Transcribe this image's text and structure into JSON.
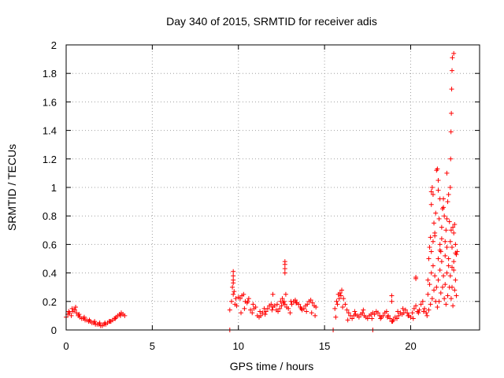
{
  "chart_data": {
    "type": "scatter",
    "title": "Day 340 of 2015, SRMTID for receiver adis",
    "xlabel": "GPS time / hours",
    "ylabel": "SRMTID / TECUs",
    "xlim": [
      0,
      24
    ],
    "ylim": [
      0,
      2
    ],
    "xticks": [
      0,
      5,
      10,
      15,
      20
    ],
    "yticks": [
      0,
      0.2,
      0.4,
      0.6,
      0.8,
      1,
      1.2,
      1.4,
      1.6,
      1.8,
      2
    ],
    "ytick_labels": [
      "0",
      "0.2",
      "0.4",
      "0.6",
      "0.8",
      "1",
      "1.2",
      "1.4",
      "1.6",
      "1.8",
      "2"
    ],
    "xtick_labels": [
      "0",
      "5",
      "10",
      "15",
      "20"
    ],
    "grid": true,
    "marker": "+",
    "color": "#ff0000",
    "series": [
      {
        "name": "adis",
        "x": [
          0.0,
          0.1,
          0.2,
          0.3,
          0.4,
          0.5,
          0.6,
          0.7,
          0.8,
          0.9,
          1.0,
          1.1,
          1.2,
          1.3,
          1.4,
          1.5,
          1.6,
          1.7,
          1.8,
          1.9,
          2.0,
          2.1,
          2.2,
          2.3,
          2.4,
          2.5,
          2.6,
          2.7,
          2.8,
          2.9,
          3.0,
          3.1,
          3.2,
          3.3,
          3.4,
          0.15,
          0.35,
          0.55,
          0.75,
          1.05,
          1.35,
          1.65,
          1.95,
          2.25,
          2.55,
          2.85,
          3.15,
          9.5,
          15.5,
          17.8,
          9.5,
          9.6,
          9.7,
          9.8,
          9.9,
          10.0,
          10.1,
          10.2,
          10.3,
          10.4,
          10.5,
          10.6,
          10.7,
          10.8,
          10.9,
          11.0,
          11.1,
          11.2,
          11.3,
          11.4,
          11.5,
          11.6,
          11.7,
          11.8,
          11.9,
          12.0,
          12.1,
          12.2,
          12.3,
          12.4,
          12.5,
          12.6,
          12.7,
          12.8,
          12.9,
          13.0,
          13.1,
          13.2,
          13.3,
          13.4,
          13.5,
          13.6,
          13.7,
          13.8,
          13.9,
          14.0,
          14.1,
          14.2,
          14.3,
          14.4,
          14.5,
          9.65,
          9.75,
          9.85,
          10.15,
          10.35,
          10.55,
          10.85,
          11.25,
          11.55,
          11.95,
          12.25,
          12.45,
          12.55,
          12.65,
          12.75,
          13.05,
          13.35,
          13.65,
          13.95,
          14.25,
          14.45,
          12.7,
          12.7,
          12.7,
          12.7,
          9.7,
          9.7,
          9.7,
          9.7,
          12.0,
          15.6,
          15.7,
          15.8,
          15.9,
          16.0,
          16.1,
          16.2,
          16.3,
          16.4,
          16.5,
          16.6,
          16.7,
          16.8,
          16.9,
          17.0,
          17.1,
          17.2,
          17.3,
          17.4,
          17.5,
          17.6,
          17.7,
          17.8,
          17.9,
          18.0,
          18.1,
          18.2,
          18.3,
          18.4,
          18.5,
          18.6,
          18.7,
          18.8,
          18.9,
          19.0,
          19.1,
          19.2,
          19.3,
          19.4,
          19.5,
          19.6,
          19.7,
          19.8,
          19.9,
          20.0,
          20.1,
          20.2,
          20.3,
          20.4,
          20.5,
          20.6,
          20.7,
          20.8,
          20.9,
          15.65,
          15.75,
          15.85,
          15.95,
          16.05,
          16.35,
          16.75,
          17.25,
          17.75,
          18.25,
          18.65,
          18.95,
          19.25,
          19.55,
          19.85,
          20.15,
          20.45,
          20.75,
          18.9,
          18.9,
          20.3,
          20.3,
          20.95,
          21.0,
          21.05,
          21.1,
          21.15,
          21.2,
          21.25,
          21.3,
          21.35,
          21.4,
          21.45,
          21.5,
          21.55,
          21.6,
          21.65,
          21.7,
          21.75,
          21.8,
          21.85,
          21.9,
          21.95,
          22.0,
          22.05,
          22.1,
          22.15,
          22.2,
          22.25,
          22.3,
          22.35,
          22.4,
          22.45,
          22.5,
          22.55,
          22.6,
          22.65,
          22.7,
          21.0,
          21.1,
          21.2,
          21.3,
          21.4,
          21.5,
          21.6,
          21.7,
          21.8,
          21.9,
          22.0,
          22.1,
          22.2,
          22.3,
          22.4,
          22.5,
          22.6,
          21.05,
          21.15,
          21.25,
          21.35,
          21.45,
          21.55,
          21.65,
          21.75,
          21.85,
          21.95,
          22.05,
          22.15,
          22.25,
          22.35,
          22.45,
          22.55,
          22.65,
          21.2,
          21.3,
          21.4,
          21.6,
          21.7,
          21.8,
          22.0,
          22.1,
          22.2,
          22.4,
          22.5,
          22.6,
          21.2,
          21.6,
          21.7,
          22.3,
          22.32,
          22.34,
          22.36,
          22.38,
          22.4,
          22.42,
          22.5,
          22.1,
          21.9
        ],
        "y": [
          0.09,
          0.11,
          0.12,
          0.1,
          0.13,
          0.14,
          0.12,
          0.1,
          0.09,
          0.08,
          0.08,
          0.07,
          0.07,
          0.06,
          0.06,
          0.05,
          0.05,
          0.04,
          0.04,
          0.04,
          0.03,
          0.03,
          0.04,
          0.04,
          0.05,
          0.06,
          0.06,
          0.07,
          0.08,
          0.09,
          0.1,
          0.11,
          0.12,
          0.11,
          0.1,
          0.13,
          0.15,
          0.16,
          0.11,
          0.09,
          0.07,
          0.06,
          0.05,
          0.05,
          0.06,
          0.08,
          0.1,
          0.0,
          0.0,
          0.0,
          0.14,
          0.2,
          0.25,
          0.18,
          0.17,
          0.23,
          0.22,
          0.24,
          0.25,
          0.2,
          0.19,
          0.22,
          0.14,
          0.12,
          0.15,
          0.16,
          0.1,
          0.09,
          0.1,
          0.12,
          0.15,
          0.13,
          0.15,
          0.17,
          0.18,
          0.16,
          0.17,
          0.14,
          0.13,
          0.15,
          0.17,
          0.19,
          0.18,
          0.16,
          0.15,
          0.12,
          0.18,
          0.2,
          0.21,
          0.19,
          0.18,
          0.16,
          0.14,
          0.15,
          0.17,
          0.18,
          0.2,
          0.21,
          0.19,
          0.17,
          0.16,
          0.3,
          0.27,
          0.22,
          0.12,
          0.15,
          0.2,
          0.18,
          0.13,
          0.11,
          0.14,
          0.18,
          0.2,
          0.22,
          0.2,
          0.25,
          0.2,
          0.19,
          0.15,
          0.13,
          0.12,
          0.1,
          0.48,
          0.46,
          0.43,
          0.4,
          0.41,
          0.38,
          0.35,
          0.33,
          0.25,
          0.15,
          0.2,
          0.25,
          0.26,
          0.28,
          0.22,
          0.18,
          0.14,
          0.12,
          0.1,
          0.08,
          0.1,
          0.11,
          0.1,
          0.09,
          0.11,
          0.12,
          0.1,
          0.09,
          0.08,
          0.1,
          0.11,
          0.12,
          0.11,
          0.13,
          0.12,
          0.1,
          0.09,
          0.1,
          0.12,
          0.13,
          0.1,
          0.08,
          0.06,
          0.07,
          0.09,
          0.08,
          0.1,
          0.12,
          0.11,
          0.12,
          0.14,
          0.12,
          0.1,
          0.09,
          0.12,
          0.15,
          0.17,
          0.13,
          0.14,
          0.18,
          0.2,
          0.15,
          0.12,
          0.09,
          0.18,
          0.22,
          0.24,
          0.16,
          0.07,
          0.13,
          0.14,
          0.08,
          0.08,
          0.09,
          0.06,
          0.13,
          0.15,
          0.1,
          0.08,
          0.12,
          0.13,
          0.2,
          0.24,
          0.36,
          0.37,
          0.1,
          0.35,
          0.5,
          0.58,
          0.65,
          0.88,
          1.0,
          0.95,
          0.75,
          0.68,
          0.82,
          1.12,
          1.13,
          0.98,
          0.78,
          0.6,
          0.55,
          0.72,
          0.85,
          0.92,
          0.8,
          0.62,
          0.7,
          0.78,
          0.9,
          0.95,
          0.76,
          0.62,
          0.7,
          0.58,
          0.72,
          0.68,
          0.74,
          0.6,
          0.53,
          0.55,
          0.25,
          0.32,
          0.4,
          0.45,
          0.38,
          0.3,
          0.35,
          0.42,
          0.48,
          0.38,
          0.32,
          0.4,
          0.45,
          0.38,
          0.3,
          0.42,
          0.35,
          0.14,
          0.18,
          0.22,
          0.28,
          0.2,
          0.16,
          0.2,
          0.26,
          0.3,
          0.22,
          0.18,
          0.24,
          0.3,
          0.22,
          0.17,
          0.28,
          0.24,
          0.55,
          0.62,
          0.66,
          0.5,
          0.56,
          0.64,
          0.52,
          0.58,
          0.5,
          0.44,
          0.48,
          0.54,
          0.97,
          1.05,
          0.92,
          1.0,
          1.2,
          1.39,
          1.52,
          1.69,
          1.82,
          1.91,
          1.94,
          1.1,
          0.86
        ]
      }
    ]
  }
}
